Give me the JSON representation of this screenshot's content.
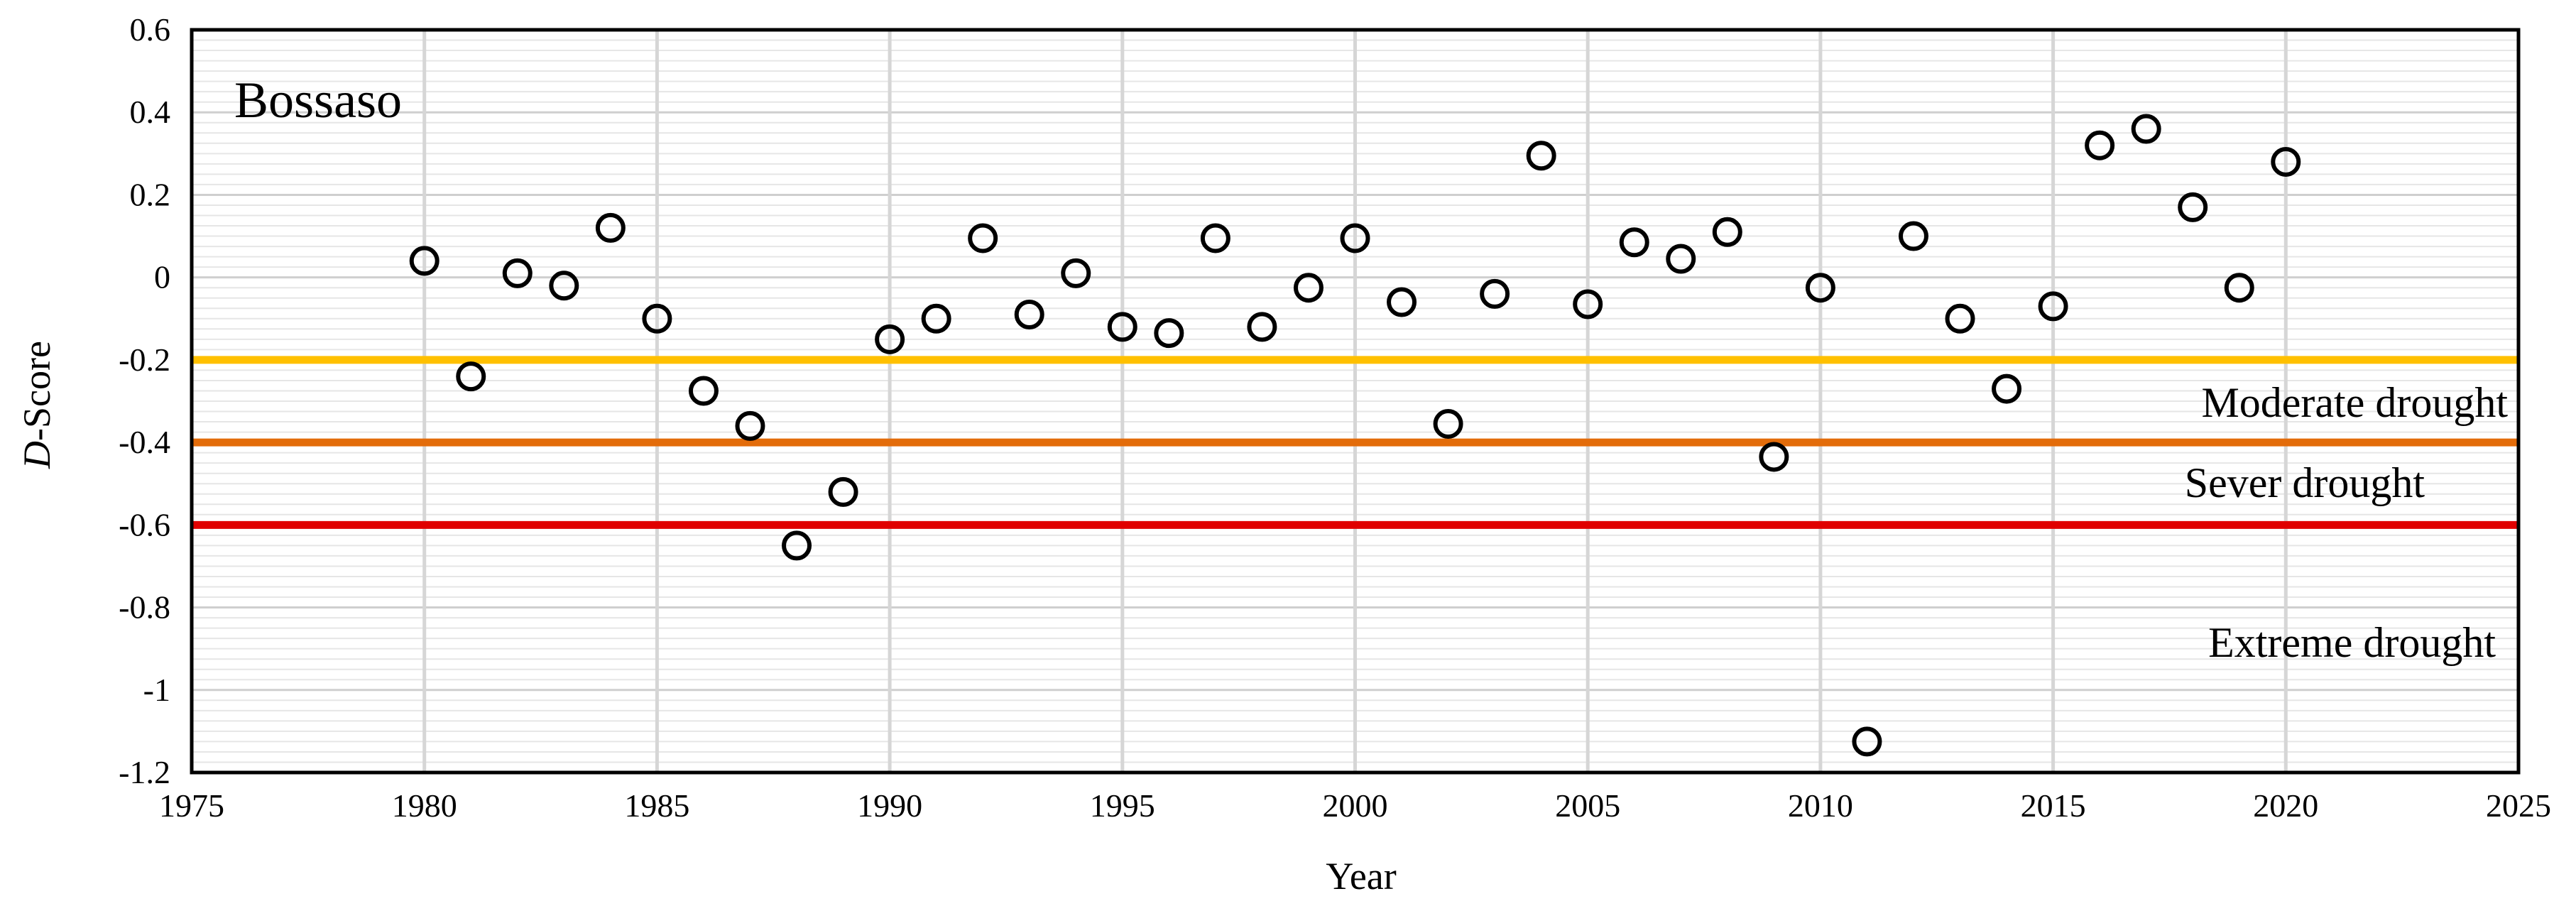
{
  "chart_data": {
    "type": "scatter",
    "title": "",
    "station_label": "Bossaso",
    "xlabel": "Year",
    "ylabel_italic": "D",
    "ylabel_rest": "-Score",
    "xlim": [
      1975,
      2025
    ],
    "ylim": [
      -1.2,
      0.6
    ],
    "x_ticks": [
      1975,
      1980,
      1985,
      1990,
      1995,
      2000,
      2005,
      2010,
      2015,
      2020,
      2025
    ],
    "y_ticks": [
      0.6,
      0.4,
      0.2,
      0,
      -0.2,
      -0.4,
      -0.6,
      -0.8,
      -1,
      -1.2
    ],
    "grid": true,
    "marker": "open-circle",
    "series": [
      {
        "x": [
          1980,
          1981,
          1982,
          1983,
          1984,
          1985,
          1986,
          1987,
          1988,
          1989,
          1990,
          1991,
          1992,
          1993,
          1994,
          1995,
          1996,
          1997,
          1998,
          1999,
          2000,
          2001,
          2002,
          2003,
          2004,
          2005,
          2006,
          2007,
          2008,
          2009,
          2010,
          2011,
          2012,
          2013,
          2014,
          2015,
          2016,
          2017,
          2018,
          2019,
          2020
        ],
        "y": [
          0.04,
          -0.24,
          0.01,
          -0.02,
          0.12,
          -0.1,
          -0.275,
          -0.36,
          -0.65,
          -0.52,
          -0.15,
          -0.1,
          0.095,
          -0.09,
          0.01,
          -0.12,
          -0.135,
          0.095,
          -0.12,
          -0.025,
          0.095,
          -0.06,
          -0.355,
          -0.04,
          0.295,
          -0.065,
          0.085,
          0.045,
          0.11,
          -0.435,
          -0.025,
          -1.125,
          0.1,
          -0.1,
          -0.27,
          -0.07,
          0.32,
          0.36,
          0.17,
          -0.025,
          0.28
        ]
      }
    ],
    "thresholds": [
      {
        "value": -0.2,
        "color": "#FFC000",
        "label": "Moderate drought"
      },
      {
        "value": -0.4,
        "color": "#E36C0A",
        "label": "Sever drought"
      },
      {
        "value": -0.6,
        "color": "#E00000",
        "label": "Extreme drought"
      }
    ]
  }
}
